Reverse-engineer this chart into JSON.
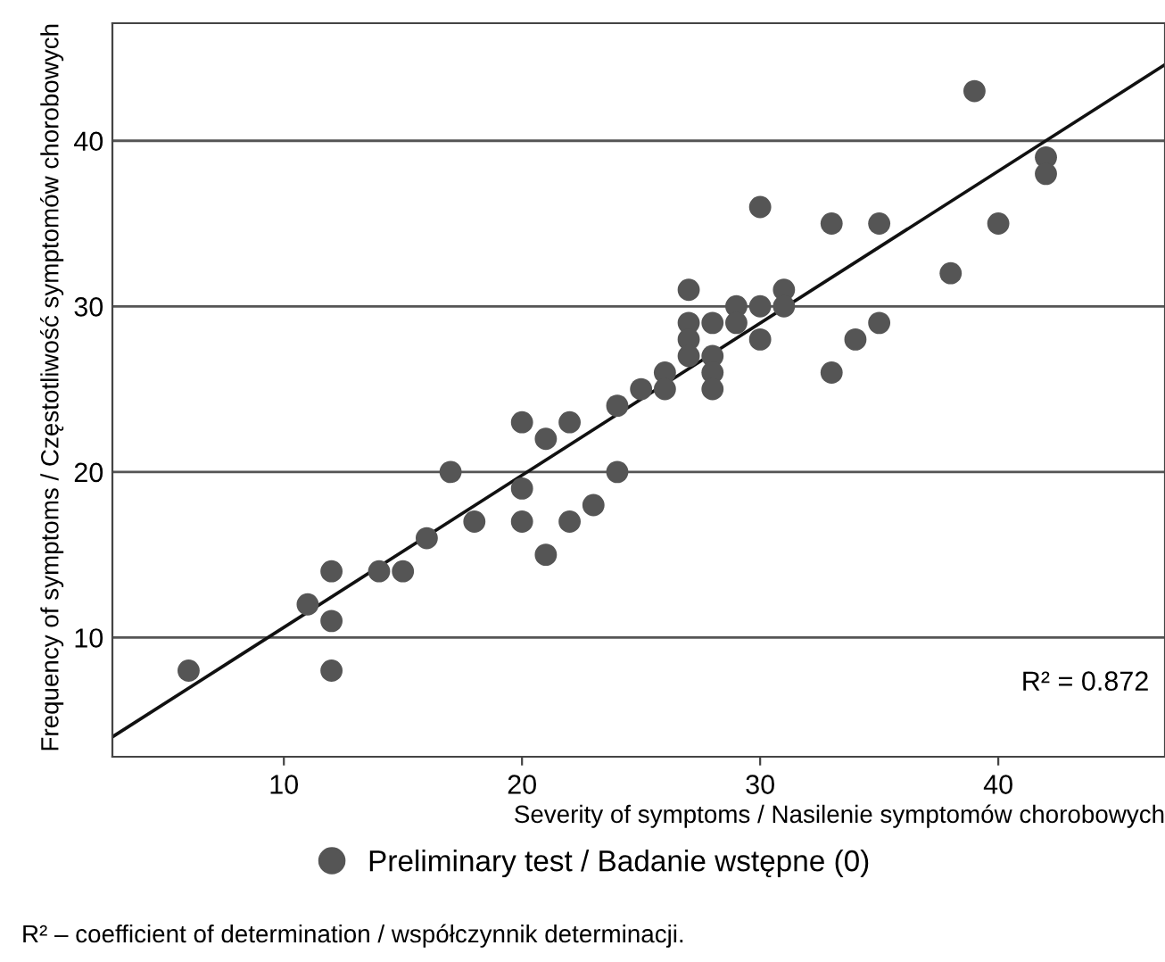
{
  "chart_data": {
    "type": "scatter",
    "xlabel": "Severity of symptoms / Nasilenie symptomów chorobowych",
    "ylabel": "Frequency of symptoms / Częstotliwość symptomów chorobowych",
    "xlim": [
      2.8,
      47
    ],
    "ylim": [
      2.8,
      47.1
    ],
    "xticks": [
      10,
      20,
      30,
      40
    ],
    "yticks": [
      10,
      20,
      30,
      40
    ],
    "grid": "y",
    "legend": "bottom",
    "marker": "circle",
    "series": [
      {
        "name": "Preliminary test / Badanie wstępne (0)",
        "color": "#555555",
        "x": [
          6,
          11,
          12,
          12,
          12,
          14,
          15,
          16,
          17,
          18,
          20,
          20,
          20,
          21,
          21,
          22,
          22,
          23,
          24,
          24,
          25,
          26,
          26,
          27,
          27,
          27,
          27,
          28,
          28,
          28,
          28,
          29,
          29,
          30,
          30,
          30,
          31,
          31,
          33,
          33,
          34,
          35,
          35,
          38,
          39,
          40,
          42,
          42
        ],
        "values": [
          8,
          12,
          14,
          11,
          8,
          14,
          14,
          16,
          20,
          17,
          23,
          19,
          17,
          22,
          15,
          23,
          17,
          18,
          24,
          20,
          25,
          26,
          25,
          31,
          29,
          28,
          27,
          29,
          27,
          26,
          25,
          30,
          29,
          36,
          30,
          28,
          31,
          30,
          35,
          26,
          28,
          35,
          29,
          32,
          43,
          35,
          39,
          38
        ]
      },
      {
        "color": "#111111",
        "type": "line",
        "marker": "none",
        "line_style": "solid",
        "x": [
          2.8,
          47
        ],
        "values": [
          4.0,
          44.6
        ]
      }
    ],
    "annotations": [
      "R² = 0.872",
      "R² – coefficient of determination / współczynnik determinacji."
    ]
  }
}
